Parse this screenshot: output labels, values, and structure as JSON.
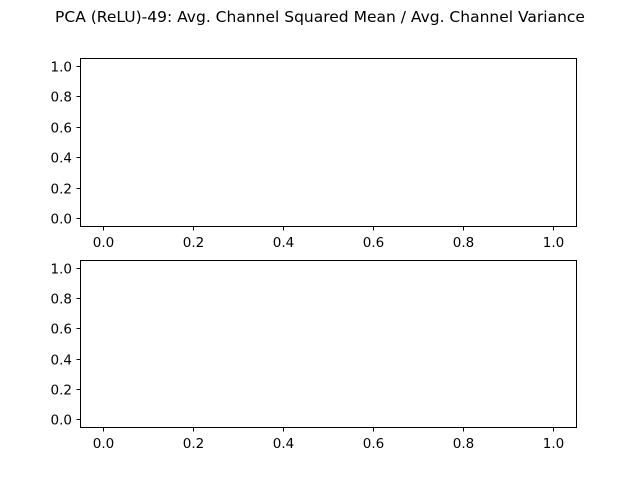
{
  "figure": {
    "suptitle": "PCA (ReLU)-49: Avg. Channel Squared Mean / Avg. Channel Variance"
  },
  "chart_data": [
    {
      "type": "line",
      "title": "",
      "xlabel": "",
      "ylabel": "",
      "xlim": [
        -0.05,
        1.05
      ],
      "ylim": [
        -0.05,
        1.05
      ],
      "x_ticks": [
        "0.0",
        "0.2",
        "0.4",
        "0.6",
        "0.8",
        "1.0"
      ],
      "y_ticks": [
        "0.0",
        "0.2",
        "0.4",
        "0.6",
        "0.8",
        "1.0"
      ],
      "grid": false,
      "series": []
    },
    {
      "type": "line",
      "title": "",
      "xlabel": "",
      "ylabel": "",
      "xlim": [
        -0.05,
        1.05
      ],
      "ylim": [
        -0.05,
        1.05
      ],
      "x_ticks": [
        "0.0",
        "0.2",
        "0.4",
        "0.6",
        "0.8",
        "1.0"
      ],
      "y_ticks": [
        "0.0",
        "0.2",
        "0.4",
        "0.6",
        "0.8",
        "1.0"
      ],
      "grid": false,
      "series": []
    }
  ]
}
